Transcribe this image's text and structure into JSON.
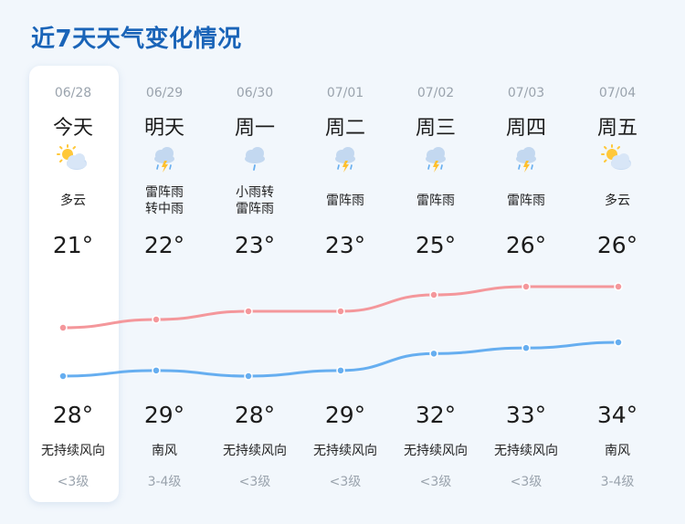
{
  "title": "近7天天气变化情况",
  "days": [
    {
      "date": "06/28",
      "dow": "今天",
      "icon": "partly-cloudy-icon",
      "weather": [
        "多云"
      ],
      "hi": "21°",
      "lo": "28°",
      "wind": "无持续风向",
      "level": "<3级"
    },
    {
      "date": "06/29",
      "dow": "明天",
      "icon": "thunder-rain-icon",
      "weather": [
        "雷阵雨",
        "转中雨"
      ],
      "hi": "22°",
      "lo": "29°",
      "wind": "南风",
      "level": "3-4级"
    },
    {
      "date": "06/30",
      "dow": "周一",
      "icon": "light-rain-icon",
      "weather": [
        "小雨转",
        "雷阵雨"
      ],
      "hi": "23°",
      "lo": "28°",
      "wind": "无持续风向",
      "level": "<3级"
    },
    {
      "date": "07/01",
      "dow": "周二",
      "icon": "thunder-rain-icon",
      "weather": [
        "雷阵雨"
      ],
      "hi": "23°",
      "lo": "29°",
      "wind": "无持续风向",
      "level": "<3级"
    },
    {
      "date": "07/02",
      "dow": "周三",
      "icon": "thunder-rain-icon",
      "weather": [
        "雷阵雨"
      ],
      "hi": "25°",
      "lo": "32°",
      "wind": "无持续风向",
      "level": "<3级"
    },
    {
      "date": "07/03",
      "dow": "周四",
      "icon": "thunder-rain-icon",
      "weather": [
        "雷阵雨"
      ],
      "hi": "26°",
      "lo": "33°",
      "wind": "无持续风向",
      "level": "<3级"
    },
    {
      "date": "07/04",
      "dow": "周五",
      "icon": "partly-cloudy-icon",
      "weather": [
        "多云"
      ],
      "hi": "26°",
      "lo": "34°",
      "wind": "南风",
      "level": "3-4级"
    }
  ],
  "chart_data": {
    "type": "line",
    "categories": [
      "06/28",
      "06/29",
      "06/30",
      "07/01",
      "07/02",
      "07/03",
      "07/04"
    ],
    "series": [
      {
        "values": [
          21,
          22,
          23,
          23,
          25,
          26,
          26
        ],
        "color": "#f4979b"
      },
      {
        "values": [
          28,
          29,
          28,
          29,
          32,
          33,
          34
        ],
        "color": "#66aef0"
      }
    ]
  },
  "colors": {
    "title": "#1a64b8",
    "accent_blue": "#66aef0",
    "accent_pink": "#f4979b",
    "muted": "#9aa3ad"
  }
}
